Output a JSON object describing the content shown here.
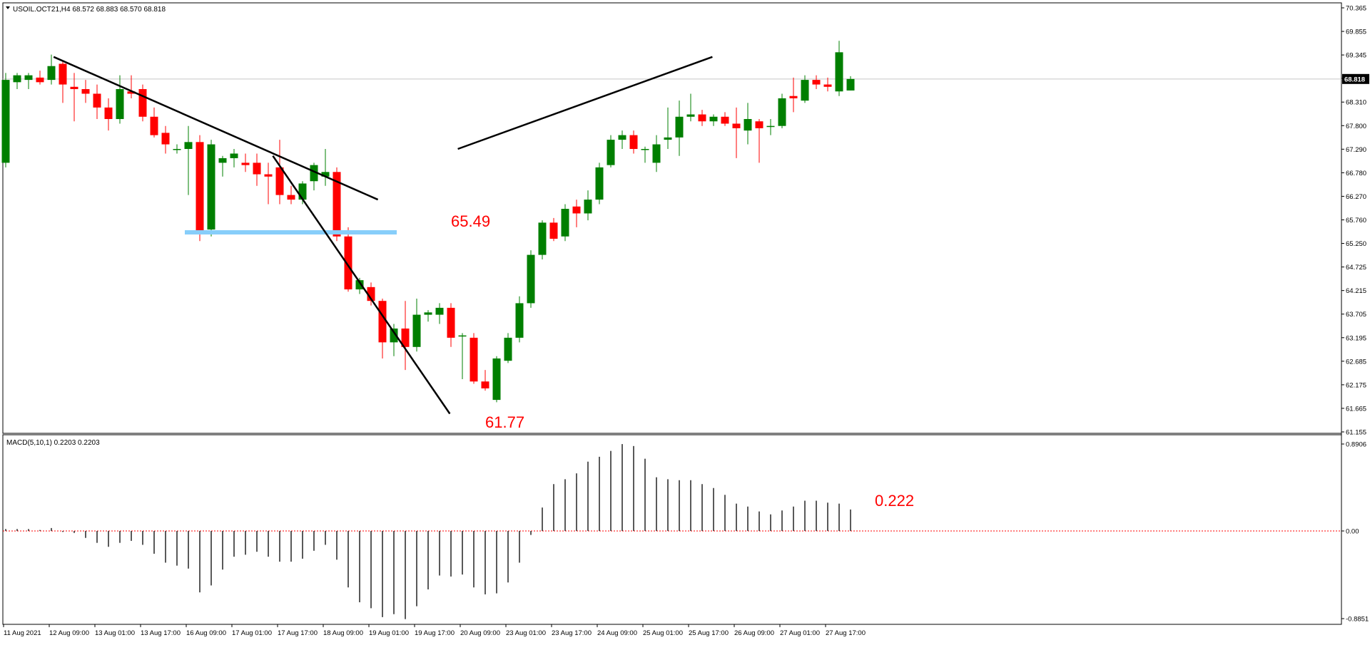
{
  "header": {
    "symbol_info": "USOIL.OCT21,H4  68.572 68.883 68.570 68.818"
  },
  "price_axis": {
    "ticks": [
      "70.365",
      "69.855",
      "69.345",
      "68.830",
      "68.310",
      "67.800",
      "67.290",
      "66.780",
      "66.270",
      "65.760",
      "65.250",
      "64.725",
      "64.215",
      "63.705",
      "63.195",
      "62.685",
      "62.175",
      "61.665",
      "61.155"
    ],
    "current_price_label": "68.818"
  },
  "time_axis": {
    "labels": [
      "11 Aug 2021",
      "12 Aug 09:00",
      "13 Aug 01:00",
      "13 Aug 17:00",
      "16 Aug 09:00",
      "17 Aug 01:00",
      "17 Aug 17:00",
      "18 Aug 09:00",
      "19 Aug 01:00",
      "19 Aug 17:00",
      "20 Aug 09:00",
      "23 Aug 01:00",
      "23 Aug 17:00",
      "24 Aug 09:00",
      "25 Aug 01:00",
      "25 Aug 17:00",
      "26 Aug 09:00",
      "27 Aug 01:00",
      "27 Aug 17:00"
    ]
  },
  "annotations": {
    "resistance_label": "65.49",
    "low_label": "61.77",
    "macd_value_label": "0.222"
  },
  "indicator": {
    "title": "MACD(5,10,1) 0.2203 0.2203",
    "axis_ticks": [
      "0.8906",
      "0.00",
      "-0.8851"
    ]
  },
  "colors": {
    "bull": "#007f00",
    "bear": "#ff0000",
    "annotation": "#ff0000",
    "support_line": "#87cefa",
    "trend_line": "#000000",
    "grid_price_line": "#c8c8c8",
    "macd_zero": "#ff0000"
  },
  "chart_data": {
    "type": "candlestick",
    "timeframe": "H4",
    "ylim": [
      61.155,
      70.365
    ],
    "candles": [
      {
        "o": 67.0,
        "h": 68.95,
        "l": 66.9,
        "c": 68.8
      },
      {
        "o": 68.75,
        "h": 68.95,
        "l": 68.6,
        "c": 68.9
      },
      {
        "o": 68.8,
        "h": 68.95,
        "l": 68.6,
        "c": 68.9
      },
      {
        "o": 68.85,
        "h": 69.0,
        "l": 68.7,
        "c": 68.75
      },
      {
        "o": 68.8,
        "h": 69.35,
        "l": 68.7,
        "c": 69.1
      },
      {
        "o": 69.15,
        "h": 69.2,
        "l": 68.3,
        "c": 68.7
      },
      {
        "o": 68.65,
        "h": 68.95,
        "l": 67.9,
        "c": 68.6
      },
      {
        "o": 68.6,
        "h": 68.8,
        "l": 68.3,
        "c": 68.5
      },
      {
        "o": 68.5,
        "h": 68.7,
        "l": 67.95,
        "c": 68.2
      },
      {
        "o": 68.2,
        "h": 68.4,
        "l": 67.7,
        "c": 67.95
      },
      {
        "o": 67.95,
        "h": 68.9,
        "l": 67.85,
        "c": 68.6
      },
      {
        "o": 68.55,
        "h": 68.9,
        "l": 68.4,
        "c": 68.5
      },
      {
        "o": 68.6,
        "h": 68.7,
        "l": 67.9,
        "c": 68.0
      },
      {
        "o": 68.0,
        "h": 68.2,
        "l": 67.55,
        "c": 67.6
      },
      {
        "o": 67.65,
        "h": 67.8,
        "l": 67.2,
        "c": 67.4
      },
      {
        "o": 67.3,
        "h": 67.4,
        "l": 67.2,
        "c": 67.3
      },
      {
        "o": 67.3,
        "h": 67.8,
        "l": 66.3,
        "c": 67.45
      },
      {
        "o": 67.45,
        "h": 67.6,
        "l": 65.3,
        "c": 65.5
      },
      {
        "o": 65.55,
        "h": 67.5,
        "l": 65.4,
        "c": 67.4
      },
      {
        "o": 67.0,
        "h": 67.15,
        "l": 66.7,
        "c": 67.1
      },
      {
        "o": 67.1,
        "h": 67.3,
        "l": 66.9,
        "c": 67.2
      },
      {
        "o": 67.0,
        "h": 67.2,
        "l": 66.8,
        "c": 66.95
      },
      {
        "o": 67.0,
        "h": 67.2,
        "l": 66.5,
        "c": 66.75
      },
      {
        "o": 66.75,
        "h": 67.0,
        "l": 66.1,
        "c": 66.7
      },
      {
        "o": 66.9,
        "h": 67.5,
        "l": 66.1,
        "c": 66.3
      },
      {
        "o": 66.3,
        "h": 66.5,
        "l": 66.1,
        "c": 66.2
      },
      {
        "o": 66.2,
        "h": 66.6,
        "l": 66.1,
        "c": 66.55
      },
      {
        "o": 66.6,
        "h": 67.0,
        "l": 66.4,
        "c": 66.95
      },
      {
        "o": 66.7,
        "h": 67.3,
        "l": 66.5,
        "c": 66.8
      },
      {
        "o": 66.8,
        "h": 66.9,
        "l": 65.3,
        "c": 65.4
      },
      {
        "o": 65.4,
        "h": 65.6,
        "l": 64.2,
        "c": 64.25
      },
      {
        "o": 64.25,
        "h": 64.5,
        "l": 64.15,
        "c": 64.45
      },
      {
        "o": 64.3,
        "h": 64.4,
        "l": 63.9,
        "c": 64.0
      },
      {
        "o": 64.0,
        "h": 64.05,
        "l": 62.75,
        "c": 63.1
      },
      {
        "o": 63.1,
        "h": 63.5,
        "l": 62.8,
        "c": 63.4
      },
      {
        "o": 63.4,
        "h": 64.0,
        "l": 62.5,
        "c": 63.0
      },
      {
        "o": 63.0,
        "h": 64.05,
        "l": 62.9,
        "c": 63.7
      },
      {
        "o": 63.7,
        "h": 63.8,
        "l": 63.55,
        "c": 63.75
      },
      {
        "o": 63.7,
        "h": 63.95,
        "l": 63.5,
        "c": 63.85
      },
      {
        "o": 63.85,
        "h": 63.95,
        "l": 63.0,
        "c": 63.2
      },
      {
        "o": 63.25,
        "h": 63.3,
        "l": 62.3,
        "c": 63.25
      },
      {
        "o": 63.2,
        "h": 63.3,
        "l": 62.2,
        "c": 62.25
      },
      {
        "o": 62.25,
        "h": 62.5,
        "l": 62.05,
        "c": 62.1
      },
      {
        "o": 61.85,
        "h": 62.8,
        "l": 61.8,
        "c": 62.75
      },
      {
        "o": 62.7,
        "h": 63.3,
        "l": 62.65,
        "c": 63.2
      },
      {
        "o": 63.2,
        "h": 64.1,
        "l": 63.1,
        "c": 63.95
      },
      {
        "o": 63.95,
        "h": 65.1,
        "l": 63.85,
        "c": 65.0
      },
      {
        "o": 65.0,
        "h": 65.75,
        "l": 64.9,
        "c": 65.7
      },
      {
        "o": 65.7,
        "h": 65.8,
        "l": 65.3,
        "c": 65.35
      },
      {
        "o": 65.4,
        "h": 66.1,
        "l": 65.3,
        "c": 66.0
      },
      {
        "o": 66.05,
        "h": 66.2,
        "l": 65.6,
        "c": 65.9
      },
      {
        "o": 65.9,
        "h": 66.4,
        "l": 65.75,
        "c": 66.2
      },
      {
        "o": 66.2,
        "h": 67.0,
        "l": 66.1,
        "c": 66.9
      },
      {
        "o": 66.95,
        "h": 67.6,
        "l": 66.9,
        "c": 67.5
      },
      {
        "o": 67.5,
        "h": 67.7,
        "l": 67.3,
        "c": 67.6
      },
      {
        "o": 67.6,
        "h": 67.7,
        "l": 67.2,
        "c": 67.3
      },
      {
        "o": 67.3,
        "h": 67.35,
        "l": 67.0,
        "c": 67.3
      },
      {
        "o": 67.0,
        "h": 67.6,
        "l": 66.8,
        "c": 67.4
      },
      {
        "o": 67.5,
        "h": 68.2,
        "l": 67.3,
        "c": 67.55
      },
      {
        "o": 67.55,
        "h": 68.35,
        "l": 67.15,
        "c": 68.0
      },
      {
        "o": 68.0,
        "h": 68.5,
        "l": 67.9,
        "c": 68.05
      },
      {
        "o": 68.05,
        "h": 68.15,
        "l": 67.8,
        "c": 67.9
      },
      {
        "o": 67.9,
        "h": 68.05,
        "l": 67.8,
        "c": 68.0
      },
      {
        "o": 68.0,
        "h": 68.1,
        "l": 67.8,
        "c": 67.85
      },
      {
        "o": 67.85,
        "h": 68.2,
        "l": 67.1,
        "c": 67.75
      },
      {
        "o": 67.7,
        "h": 68.3,
        "l": 67.4,
        "c": 67.95
      },
      {
        "o": 67.9,
        "h": 67.95,
        "l": 67.0,
        "c": 67.75
      },
      {
        "o": 67.8,
        "h": 67.95,
        "l": 67.6,
        "c": 67.8
      },
      {
        "o": 67.8,
        "h": 68.5,
        "l": 67.75,
        "c": 68.4
      },
      {
        "o": 68.45,
        "h": 68.85,
        "l": 68.1,
        "c": 68.4
      },
      {
        "o": 68.35,
        "h": 68.9,
        "l": 68.3,
        "c": 68.8
      },
      {
        "o": 68.8,
        "h": 68.9,
        "l": 68.6,
        "c": 68.7
      },
      {
        "o": 68.7,
        "h": 68.85,
        "l": 68.55,
        "c": 68.65
      },
      {
        "o": 68.55,
        "h": 69.65,
        "l": 68.45,
        "c": 69.4
      },
      {
        "o": 68.57,
        "h": 68.88,
        "l": 68.57,
        "c": 68.82
      }
    ],
    "support_level": 65.49,
    "swing_low": 61.77,
    "series": [
      {
        "name": "MACD(5,10,1)",
        "values": [
          0.02,
          0.02,
          0.02,
          0.01,
          0.03,
          -0.01,
          -0.02,
          -0.07,
          -0.12,
          -0.16,
          -0.12,
          -0.1,
          -0.14,
          -0.23,
          -0.32,
          -0.35,
          -0.38,
          -0.62,
          -0.55,
          -0.39,
          -0.26,
          -0.24,
          -0.21,
          -0.26,
          -0.31,
          -0.31,
          -0.28,
          -0.2,
          -0.14,
          -0.29,
          -0.57,
          -0.72,
          -0.78,
          -0.87,
          -0.84,
          -0.89,
          -0.76,
          -0.59,
          -0.45,
          -0.46,
          -0.44,
          -0.57,
          -0.64,
          -0.63,
          -0.52,
          -0.32,
          -0.04,
          0.24,
          0.48,
          0.53,
          0.59,
          0.71,
          0.76,
          0.82,
          0.89,
          0.87,
          0.74,
          0.55,
          0.53,
          0.52,
          0.52,
          0.48,
          0.44,
          0.37,
          0.28,
          0.25,
          0.2,
          0.17,
          0.21,
          0.25,
          0.31,
          0.31,
          0.29,
          0.28,
          0.22
        ]
      }
    ]
  }
}
